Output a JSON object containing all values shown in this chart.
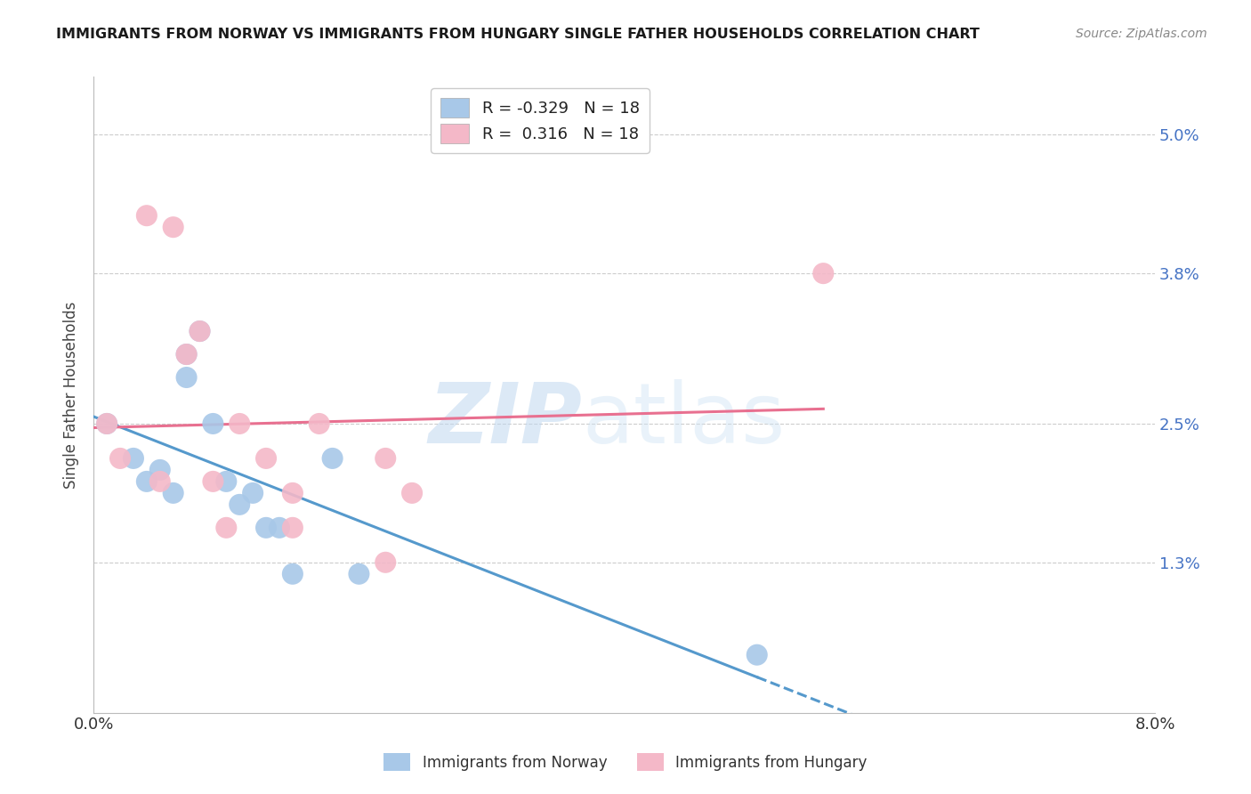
{
  "title": "IMMIGRANTS FROM NORWAY VS IMMIGRANTS FROM HUNGARY SINGLE FATHER HOUSEHOLDS CORRELATION CHART",
  "source": "Source: ZipAtlas.com",
  "xlabel": "",
  "ylabel": "Single Father Households",
  "xlim": [
    0.0,
    0.08
  ],
  "ylim": [
    0.0,
    0.055
  ],
  "yticks": [
    0.013,
    0.025,
    0.038,
    0.05
  ],
  "ytick_labels": [
    "1.3%",
    "2.5%",
    "3.8%",
    "5.0%"
  ],
  "xticks": [
    0.0,
    0.02,
    0.04,
    0.06,
    0.08
  ],
  "xtick_labels": [
    "0.0%",
    "",
    "",
    "",
    "8.0%"
  ],
  "norway_R": -0.329,
  "norway_N": 18,
  "hungary_R": 0.316,
  "hungary_N": 18,
  "norway_color": "#a8c8e8",
  "hungary_color": "#f4b8c8",
  "norway_line_color": "#5599cc",
  "hungary_line_color": "#e87090",
  "norway_x": [
    0.001,
    0.003,
    0.004,
    0.005,
    0.006,
    0.007,
    0.007,
    0.008,
    0.009,
    0.01,
    0.011,
    0.012,
    0.013,
    0.014,
    0.015,
    0.018,
    0.02,
    0.05
  ],
  "norway_y": [
    0.025,
    0.022,
    0.02,
    0.021,
    0.019,
    0.031,
    0.029,
    0.033,
    0.025,
    0.02,
    0.018,
    0.019,
    0.016,
    0.016,
    0.012,
    0.022,
    0.012,
    0.005
  ],
  "hungary_x": [
    0.001,
    0.002,
    0.004,
    0.005,
    0.006,
    0.007,
    0.008,
    0.009,
    0.01,
    0.011,
    0.013,
    0.015,
    0.015,
    0.017,
    0.022,
    0.022,
    0.024,
    0.055
  ],
  "hungary_y": [
    0.025,
    0.022,
    0.043,
    0.02,
    0.042,
    0.031,
    0.033,
    0.02,
    0.016,
    0.025,
    0.022,
    0.019,
    0.016,
    0.025,
    0.013,
    0.022,
    0.019,
    0.038
  ],
  "watermark_text": "ZIP",
  "watermark_text2": "atlas",
  "background_color": "#ffffff",
  "grid_color": "#cccccc",
  "legend_box_color": "#ddeeff",
  "legend_box_color2": "#ffddee"
}
